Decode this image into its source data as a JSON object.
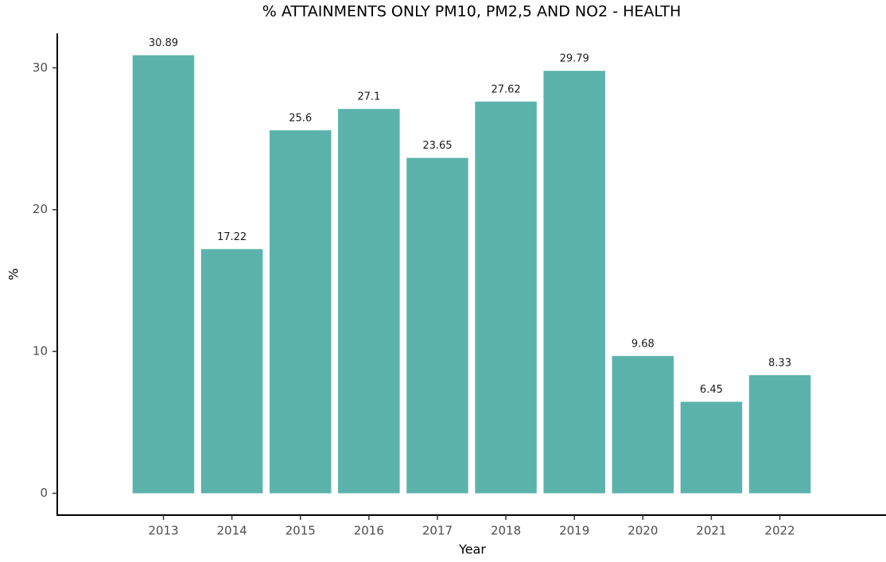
{
  "chart_data": {
    "type": "bar",
    "title": "% ATTAINMENTS ONLY PM10, PM2,5 AND NO2 - HEALTH",
    "x_label": "Year",
    "y_label": "%",
    "categories": [
      "2013",
      "2014",
      "2015",
      "2016",
      "2017",
      "2018",
      "2019",
      "2020",
      "2021",
      "2022"
    ],
    "values": [
      30.89,
      17.22,
      25.6,
      27.1,
      23.65,
      27.62,
      29.79,
      9.68,
      6.45,
      8.33
    ],
    "color": "#5bb3ab",
    "ylim": [
      -1.54,
      32.43
    ],
    "yticks": [
      0,
      10,
      20,
      30
    ],
    "grid": false
  }
}
